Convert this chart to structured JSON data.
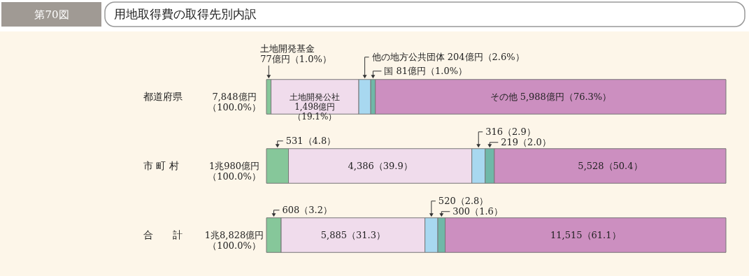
{
  "chart_data": {
    "type": "bar",
    "orientation": "horizontal",
    "stacked": true,
    "title": "用地取得費の取得先別内訳",
    "annotations": [
      "第70図"
    ],
    "categories": [
      "都道府県",
      "市 町 村",
      "合　　計"
    ],
    "totals": [
      "7,848億円（100.0%）",
      "1兆980億円（100.0%）",
      "1兆8,828億円（100.0%）"
    ],
    "series": [
      {
        "name": "土地開発基金",
        "color": "#86c79a",
        "values": [
          1.0,
          4.8,
          3.2
        ],
        "value_labels": [
          "77億円（1.0%）",
          "531（4.8）",
          "608（3.2）"
        ]
      },
      {
        "name": "土地開発公社",
        "color": "#f0dcec",
        "values": [
          19.1,
          39.9,
          31.3
        ],
        "value_labels": [
          "1,498億円（19.1%）",
          "4,386（39.9）",
          "5,885（31.3）"
        ]
      },
      {
        "name": "他の地方公共団体",
        "color": "#a8d8f0",
        "values": [
          2.6,
          2.9,
          2.8
        ],
        "value_labels": [
          "204億円（2.6%）",
          "316（2.9）",
          "520（2.8）"
        ]
      },
      {
        "name": "国",
        "color": "#6fb8a8",
        "values": [
          1.0,
          2.0,
          1.6
        ],
        "value_labels": [
          "81億円（1.0%）",
          "219（2.0）",
          "300（1.6）"
        ]
      },
      {
        "name": "その他",
        "color": "#cc8fc0",
        "values": [
          76.3,
          50.4,
          61.1
        ],
        "value_labels": [
          "5,988億円（76.3%）",
          "5,528（50.4）",
          "11,515（61.1）"
        ]
      }
    ]
  }
}
